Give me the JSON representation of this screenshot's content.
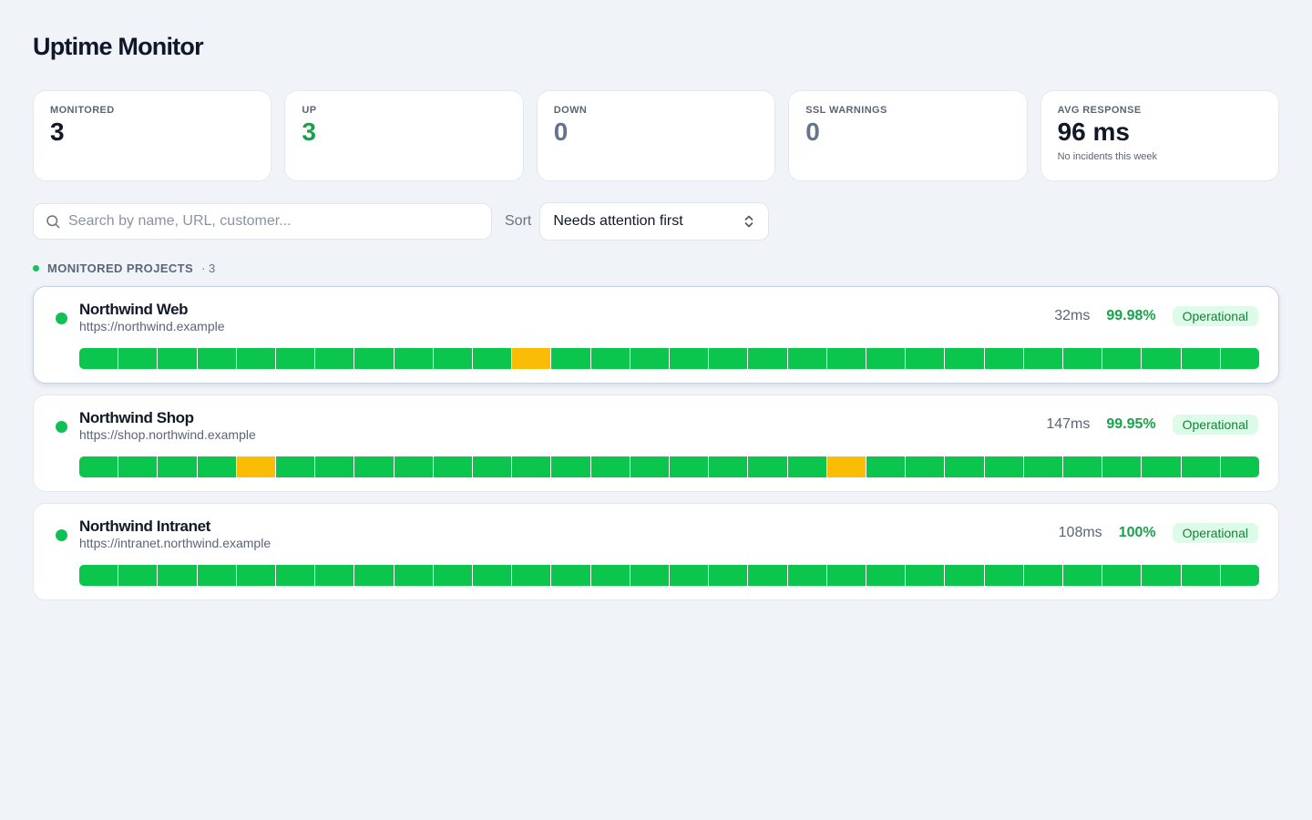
{
  "title": "Uptime Monitor",
  "stats": [
    {
      "label": "MONITORED",
      "value": "3",
      "tone": "default",
      "sub": ""
    },
    {
      "label": "UP",
      "value": "3",
      "tone": "green",
      "sub": ""
    },
    {
      "label": "DOWN",
      "value": "0",
      "tone": "gray",
      "sub": ""
    },
    {
      "label": "SSL WARNINGS",
      "value": "0",
      "tone": "gray",
      "sub": ""
    },
    {
      "label": "AVG RESPONSE",
      "value": "96 ms",
      "tone": "default",
      "sub": "No incidents this week"
    }
  ],
  "search": {
    "placeholder": "Search by name, URL, customer...",
    "value": "",
    "icon": "search-icon"
  },
  "sort": {
    "label": "Sort",
    "selected": "Needs attention first",
    "icon": "chevron-up-down-icon"
  },
  "section": {
    "title": "MONITORED PROJECTS",
    "count": "· 3"
  },
  "colors": {
    "up": "#0bc54d",
    "degraded": "#fbbc05",
    "uptime": "#16a34a",
    "badge_bg": "#dcfce7"
  },
  "projects": [
    {
      "name": "Northwind Web",
      "url": "https://northwind.example",
      "response": "32ms",
      "uptime": "99.98%",
      "status": "Operational",
      "history": [
        "up",
        "up",
        "up",
        "up",
        "up",
        "up",
        "up",
        "up",
        "up",
        "up",
        "up",
        "degraded",
        "up",
        "up",
        "up",
        "up",
        "up",
        "up",
        "up",
        "up",
        "up",
        "up",
        "up",
        "up",
        "up",
        "up",
        "up",
        "up",
        "up",
        "up"
      ]
    },
    {
      "name": "Northwind Shop",
      "url": "https://shop.northwind.example",
      "response": "147ms",
      "uptime": "99.95%",
      "status": "Operational",
      "history": [
        "up",
        "up",
        "up",
        "up",
        "degraded",
        "up",
        "up",
        "up",
        "up",
        "up",
        "up",
        "up",
        "up",
        "up",
        "up",
        "up",
        "up",
        "up",
        "up",
        "degraded",
        "up",
        "up",
        "up",
        "up",
        "up",
        "up",
        "up",
        "up",
        "up",
        "up"
      ]
    },
    {
      "name": "Northwind Intranet",
      "url": "https://intranet.northwind.example",
      "response": "108ms",
      "uptime": "100%",
      "status": "Operational",
      "history": [
        "up",
        "up",
        "up",
        "up",
        "up",
        "up",
        "up",
        "up",
        "up",
        "up",
        "up",
        "up",
        "up",
        "up",
        "up",
        "up",
        "up",
        "up",
        "up",
        "up",
        "up",
        "up",
        "up",
        "up",
        "up",
        "up",
        "up",
        "up",
        "up",
        "up"
      ]
    }
  ]
}
